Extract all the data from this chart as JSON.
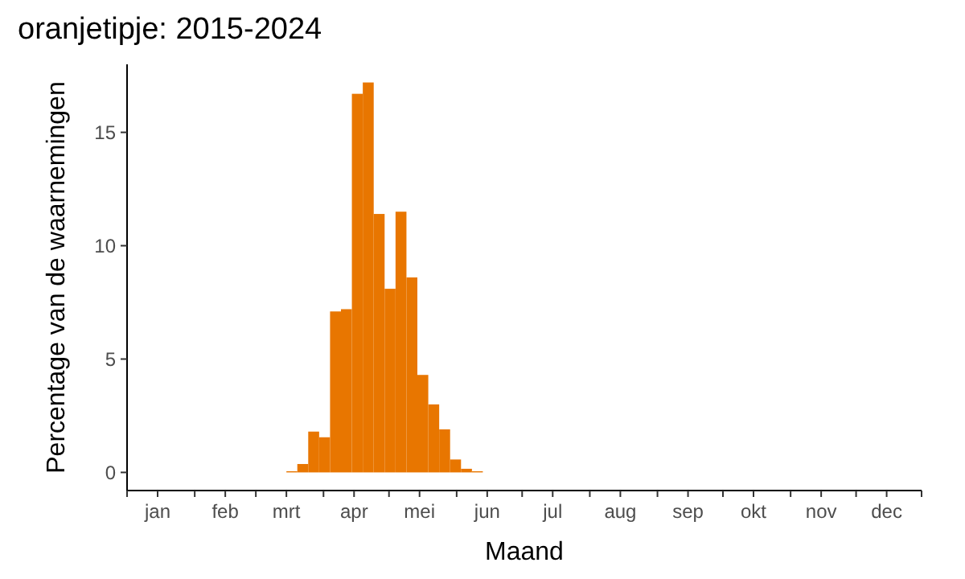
{
  "chart_data": {
    "type": "histogram",
    "title": "oranjetipje: 2015-2024",
    "xlabel": "Maand",
    "ylabel": "Percentage van de waarnemingen",
    "bins": [
      "--03-15",
      "--03-20",
      "--03-25",
      "--03-30",
      "--04-04",
      "--04-09",
      "--04-14",
      "--04-19",
      "--04-24",
      "--04-29",
      "--05-04",
      "--05-09",
      "--05-14",
      "--05-19",
      "--05-24",
      "--05-29",
      "--06-03",
      "--06-08",
      "--06-13"
    ],
    "values": [
      0.05,
      0.37,
      1.8,
      1.55,
      7.1,
      7.2,
      16.7,
      17.2,
      11.4,
      8.1,
      11.5,
      8.6,
      4.3,
      3.0,
      1.9,
      0.57,
      0.16,
      0.05
    ],
    "color": "#e87600",
    "xlim": [
      "--01-01",
      "--12-31"
    ],
    "xticks": [
      {
        "value": "--01-01",
        "label": null
      },
      {
        "value": "--01-15",
        "label": "jan"
      },
      {
        "value": "--02-01",
        "label": null
      },
      {
        "value": "--02-15",
        "label": "feb"
      },
      {
        "value": "--03-01",
        "label": null
      },
      {
        "value": "--03-15",
        "label": "mrt"
      },
      {
        "value": "--04-01",
        "label": null
      },
      {
        "value": "--04-15",
        "label": "apr"
      },
      {
        "value": "--05-01",
        "label": null
      },
      {
        "value": "--05-15",
        "label": "mei"
      },
      {
        "value": "--06-01",
        "label": null
      },
      {
        "value": "--06-15",
        "label": "jun"
      },
      {
        "value": "--07-01",
        "label": null
      },
      {
        "value": "--07-15",
        "label": "jul"
      },
      {
        "value": "--08-01",
        "label": null
      },
      {
        "value": "--08-15",
        "label": "aug"
      },
      {
        "value": "--09-01",
        "label": null
      },
      {
        "value": "--09-15",
        "label": "sep"
      },
      {
        "value": "--10-01",
        "label": null
      },
      {
        "value": "--10-15",
        "label": "okt"
      },
      {
        "value": "--11-01",
        "label": null
      },
      {
        "value": "--11-15",
        "label": "nov"
      },
      {
        "value": "--12-01",
        "label": null
      },
      {
        "value": "--12-15",
        "label": "dec"
      },
      {
        "value": "--12-31",
        "label": null
      }
    ],
    "ylim": [
      -0.8,
      18
    ],
    "yticks": [
      0,
      5,
      10,
      15
    ],
    "grid": false
  }
}
